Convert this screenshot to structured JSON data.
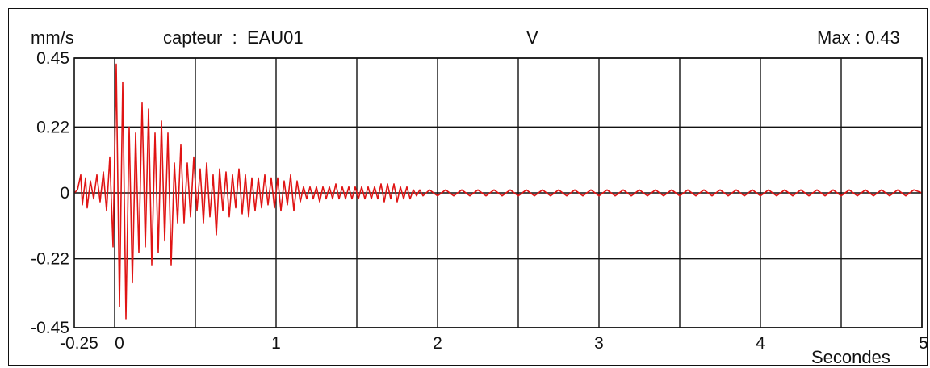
{
  "header": {
    "unit": "mm/s",
    "sensor": "capteur  :  EAU01",
    "component": "V",
    "max": "Max : 0.43"
  },
  "colors": {
    "signal": "#e01414",
    "grid": "#111111",
    "text": "#111111"
  },
  "chart_data": {
    "type": "line",
    "title": "",
    "xlabel": "Secondes",
    "ylabel": "mm/s",
    "xlim": [
      -0.25,
      5
    ],
    "ylim": [
      -0.45,
      0.45
    ],
    "grid": true,
    "x_gridlines": [
      0,
      0.5,
      1,
      1.5,
      2,
      2.5,
      3,
      3.5,
      4,
      4.5,
      5
    ],
    "x_ticks": [
      {
        "value": -0.25,
        "label": "-0.25"
      },
      {
        "value": 0,
        "label": "0"
      },
      {
        "value": 1,
        "label": "1"
      },
      {
        "value": 2,
        "label": "2"
      },
      {
        "value": 3,
        "label": "3"
      },
      {
        "value": 4,
        "label": "4"
      },
      {
        "value": 5,
        "label": "5"
      }
    ],
    "y_ticks": [
      {
        "value": 0.45,
        "label": "0.45"
      },
      {
        "value": 0.22,
        "label": "0.22"
      },
      {
        "value": 0,
        "label": "0"
      },
      {
        "value": -0.22,
        "label": "-0.22"
      },
      {
        "value": -0.45,
        "label": "-0.45"
      }
    ],
    "series": [
      {
        "values": [
          [
            -0.25,
            0.0
          ],
          [
            -0.23,
            0.01
          ],
          [
            -0.21,
            0.06
          ],
          [
            -0.2,
            -0.04
          ],
          [
            -0.18,
            0.05
          ],
          [
            -0.17,
            -0.05
          ],
          [
            -0.15,
            0.04
          ],
          [
            -0.13,
            -0.02
          ],
          [
            -0.11,
            0.06
          ],
          [
            -0.09,
            -0.03
          ],
          [
            -0.07,
            0.07
          ],
          [
            -0.05,
            -0.06
          ],
          [
            -0.03,
            0.12
          ],
          [
            -0.01,
            -0.18
          ],
          [
            0.01,
            0.43
          ],
          [
            0.03,
            -0.38
          ],
          [
            0.05,
            0.37
          ],
          [
            0.07,
            -0.42
          ],
          [
            0.09,
            0.22
          ],
          [
            0.11,
            -0.3
          ],
          [
            0.13,
            0.2
          ],
          [
            0.15,
            -0.2
          ],
          [
            0.17,
            0.3
          ],
          [
            0.19,
            -0.18
          ],
          [
            0.21,
            0.28
          ],
          [
            0.23,
            -0.24
          ],
          [
            0.25,
            0.2
          ],
          [
            0.27,
            -0.2
          ],
          [
            0.29,
            0.24
          ],
          [
            0.31,
            -0.16
          ],
          [
            0.33,
            0.2
          ],
          [
            0.35,
            -0.24
          ],
          [
            0.37,
            0.1
          ],
          [
            0.39,
            -0.1
          ],
          [
            0.41,
            0.16
          ],
          [
            0.43,
            -0.1
          ],
          [
            0.45,
            0.1
          ],
          [
            0.47,
            -0.08
          ],
          [
            0.49,
            0.12
          ],
          [
            0.51,
            -0.06
          ],
          [
            0.53,
            0.08
          ],
          [
            0.55,
            -0.1
          ],
          [
            0.57,
            0.1
          ],
          [
            0.59,
            -0.08
          ],
          [
            0.61,
            0.06
          ],
          [
            0.63,
            -0.14
          ],
          [
            0.65,
            0.08
          ],
          [
            0.67,
            -0.06
          ],
          [
            0.69,
            0.07
          ],
          [
            0.71,
            -0.08
          ],
          [
            0.73,
            0.06
          ],
          [
            0.75,
            -0.05
          ],
          [
            0.77,
            0.08
          ],
          [
            0.79,
            -0.07
          ],
          [
            0.81,
            0.06
          ],
          [
            0.83,
            -0.08
          ],
          [
            0.85,
            0.05
          ],
          [
            0.87,
            -0.06
          ],
          [
            0.89,
            0.05
          ],
          [
            0.91,
            -0.05
          ],
          [
            0.93,
            0.06
          ],
          [
            0.95,
            -0.04
          ],
          [
            0.97,
            0.05
          ],
          [
            0.99,
            -0.05
          ],
          [
            1.01,
            0.05
          ],
          [
            1.03,
            -0.06
          ],
          [
            1.05,
            0.04
          ],
          [
            1.07,
            -0.04
          ],
          [
            1.09,
            0.06
          ],
          [
            1.11,
            -0.06
          ],
          [
            1.13,
            0.04
          ],
          [
            1.15,
            -0.03
          ],
          [
            1.17,
            0.02
          ],
          [
            1.19,
            -0.02
          ],
          [
            1.21,
            0.02
          ],
          [
            1.23,
            -0.02
          ],
          [
            1.25,
            0.02
          ],
          [
            1.27,
            -0.03
          ],
          [
            1.29,
            0.02
          ],
          [
            1.31,
            -0.02
          ],
          [
            1.33,
            0.02
          ],
          [
            1.35,
            -0.02
          ],
          [
            1.37,
            0.03
          ],
          [
            1.39,
            -0.02
          ],
          [
            1.41,
            0.02
          ],
          [
            1.43,
            -0.02
          ],
          [
            1.45,
            0.02
          ],
          [
            1.47,
            -0.02
          ],
          [
            1.49,
            0.02
          ],
          [
            1.51,
            -0.02
          ],
          [
            1.53,
            0.02
          ],
          [
            1.55,
            -0.02
          ],
          [
            1.57,
            0.02
          ],
          [
            1.59,
            -0.02
          ],
          [
            1.61,
            0.02
          ],
          [
            1.63,
            -0.02
          ],
          [
            1.65,
            0.03
          ],
          [
            1.67,
            -0.03
          ],
          [
            1.69,
            0.03
          ],
          [
            1.71,
            -0.02
          ],
          [
            1.73,
            0.03
          ],
          [
            1.75,
            -0.03
          ],
          [
            1.77,
            0.02
          ],
          [
            1.79,
            -0.02
          ],
          [
            1.81,
            0.02
          ],
          [
            1.83,
            -0.02
          ],
          [
            1.85,
            0.01
          ],
          [
            1.87,
            -0.01
          ],
          [
            1.89,
            0.01
          ],
          [
            1.91,
            -0.01
          ],
          [
            1.95,
            0.01
          ],
          [
            2.0,
            -0.01
          ],
          [
            2.05,
            0.01
          ],
          [
            2.1,
            -0.01
          ],
          [
            2.15,
            0.01
          ],
          [
            2.2,
            -0.01
          ],
          [
            2.25,
            0.01
          ],
          [
            2.3,
            -0.01
          ],
          [
            2.35,
            0.01
          ],
          [
            2.4,
            -0.01
          ],
          [
            2.45,
            0.01
          ],
          [
            2.5,
            -0.01
          ],
          [
            2.55,
            0.01
          ],
          [
            2.6,
            -0.01
          ],
          [
            2.65,
            0.01
          ],
          [
            2.7,
            -0.01
          ],
          [
            2.75,
            0.01
          ],
          [
            2.8,
            -0.01
          ],
          [
            2.85,
            0.01
          ],
          [
            2.9,
            -0.01
          ],
          [
            2.95,
            0.01
          ],
          [
            3.0,
            -0.01
          ],
          [
            3.05,
            0.01
          ],
          [
            3.1,
            -0.01
          ],
          [
            3.15,
            0.01
          ],
          [
            3.2,
            -0.01
          ],
          [
            3.25,
            0.01
          ],
          [
            3.3,
            -0.01
          ],
          [
            3.35,
            0.01
          ],
          [
            3.4,
            -0.01
          ],
          [
            3.45,
            0.01
          ],
          [
            3.5,
            -0.01
          ],
          [
            3.55,
            0.01
          ],
          [
            3.6,
            -0.01
          ],
          [
            3.65,
            0.01
          ],
          [
            3.7,
            -0.01
          ],
          [
            3.75,
            0.01
          ],
          [
            3.8,
            -0.01
          ],
          [
            3.85,
            0.01
          ],
          [
            3.9,
            -0.01
          ],
          [
            3.95,
            0.01
          ],
          [
            4.0,
            -0.01
          ],
          [
            4.05,
            0.01
          ],
          [
            4.1,
            -0.01
          ],
          [
            4.15,
            0.01
          ],
          [
            4.2,
            -0.01
          ],
          [
            4.25,
            0.01
          ],
          [
            4.3,
            -0.01
          ],
          [
            4.35,
            0.01
          ],
          [
            4.4,
            -0.01
          ],
          [
            4.45,
            0.01
          ],
          [
            4.5,
            -0.01
          ],
          [
            4.55,
            0.01
          ],
          [
            4.6,
            -0.01
          ],
          [
            4.65,
            0.01
          ],
          [
            4.7,
            -0.01
          ],
          [
            4.75,
            0.01
          ],
          [
            4.8,
            -0.01
          ],
          [
            4.85,
            0.01
          ],
          [
            4.9,
            -0.01
          ],
          [
            4.95,
            0.01
          ],
          [
            5.0,
            0.0
          ]
        ]
      }
    ]
  }
}
